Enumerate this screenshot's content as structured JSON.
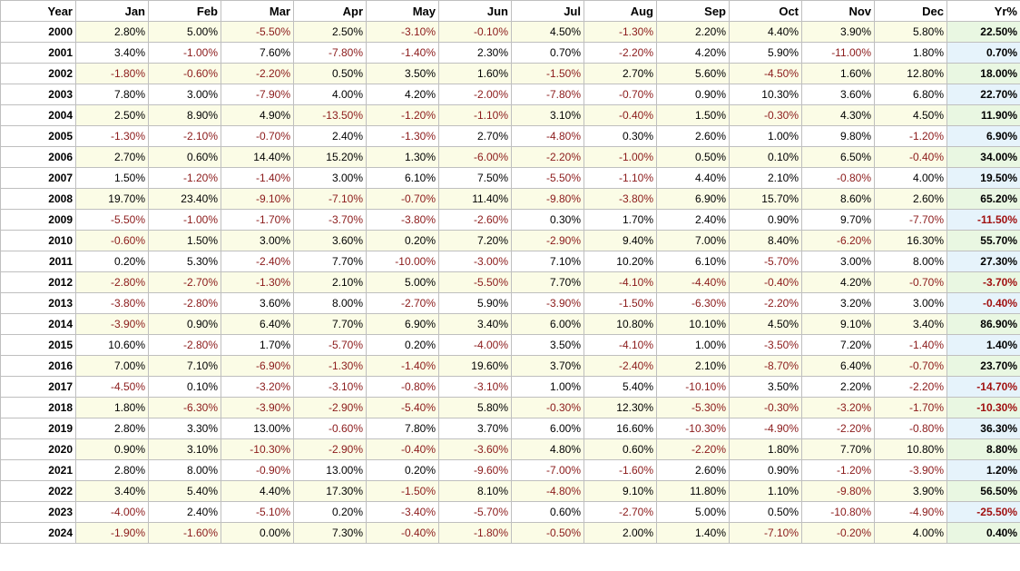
{
  "table": {
    "headers": [
      "Year",
      "Jan",
      "Feb",
      "Mar",
      "Apr",
      "May",
      "Jun",
      "Jul",
      "Aug",
      "Sep",
      "Oct",
      "Nov",
      "Dec",
      "Yr%"
    ],
    "rows": [
      {
        "year": "2000",
        "months": [
          "2.80%",
          "5.00%",
          "-5.50%",
          "2.50%",
          "-3.10%",
          "-0.10%",
          "4.50%",
          "-1.30%",
          "2.20%",
          "4.40%",
          "3.90%",
          "5.80%"
        ],
        "yr": "22.50%"
      },
      {
        "year": "2001",
        "months": [
          "3.40%",
          "-1.00%",
          "7.60%",
          "-7.80%",
          "-1.40%",
          "2.30%",
          "0.70%",
          "-2.20%",
          "4.20%",
          "5.90%",
          "-11.00%",
          "1.80%"
        ],
        "yr": "0.70%"
      },
      {
        "year": "2002",
        "months": [
          "-1.80%",
          "-0.60%",
          "-2.20%",
          "0.50%",
          "3.50%",
          "1.60%",
          "-1.50%",
          "2.70%",
          "5.60%",
          "-4.50%",
          "1.60%",
          "12.80%"
        ],
        "yr": "18.00%"
      },
      {
        "year": "2003",
        "months": [
          "7.80%",
          "3.00%",
          "-7.90%",
          "4.00%",
          "4.20%",
          "-2.00%",
          "-7.80%",
          "-0.70%",
          "0.90%",
          "10.30%",
          "3.60%",
          "6.80%"
        ],
        "yr": "22.70%"
      },
      {
        "year": "2004",
        "months": [
          "2.50%",
          "8.90%",
          "4.90%",
          "-13.50%",
          "-1.20%",
          "-1.10%",
          "3.10%",
          "-0.40%",
          "1.50%",
          "-0.30%",
          "4.30%",
          "4.50%"
        ],
        "yr": "11.90%"
      },
      {
        "year": "2005",
        "months": [
          "-1.30%",
          "-2.10%",
          "-0.70%",
          "2.40%",
          "-1.30%",
          "2.70%",
          "-4.80%",
          "0.30%",
          "2.60%",
          "1.00%",
          "9.80%",
          "-1.20%"
        ],
        "yr": "6.90%"
      },
      {
        "year": "2006",
        "months": [
          "2.70%",
          "0.60%",
          "14.40%",
          "15.20%",
          "1.30%",
          "-6.00%",
          "-2.20%",
          "-1.00%",
          "0.50%",
          "0.10%",
          "6.50%",
          "-0.40%"
        ],
        "yr": "34.00%"
      },
      {
        "year": "2007",
        "months": [
          "1.50%",
          "-1.20%",
          "-1.40%",
          "3.00%",
          "6.10%",
          "7.50%",
          "-5.50%",
          "-1.10%",
          "4.40%",
          "2.10%",
          "-0.80%",
          "4.00%"
        ],
        "yr": "19.50%"
      },
      {
        "year": "2008",
        "months": [
          "19.70%",
          "23.40%",
          "-9.10%",
          "-7.10%",
          "-0.70%",
          "11.40%",
          "-9.80%",
          "-3.80%",
          "6.90%",
          "15.70%",
          "8.60%",
          "2.60%"
        ],
        "yr": "65.20%"
      },
      {
        "year": "2009",
        "months": [
          "-5.50%",
          "-1.00%",
          "-1.70%",
          "-3.70%",
          "-3.80%",
          "-2.60%",
          "0.30%",
          "1.70%",
          "2.40%",
          "0.90%",
          "9.70%",
          "-7.70%"
        ],
        "yr": "-11.50%"
      },
      {
        "year": "2010",
        "months": [
          "-0.60%",
          "1.50%",
          "3.00%",
          "3.60%",
          "0.20%",
          "7.20%",
          "-2.90%",
          "9.40%",
          "7.00%",
          "8.40%",
          "-6.20%",
          "16.30%"
        ],
        "yr": "55.70%"
      },
      {
        "year": "2011",
        "months": [
          "0.20%",
          "5.30%",
          "-2.40%",
          "7.70%",
          "-10.00%",
          "-3.00%",
          "7.10%",
          "10.20%",
          "6.10%",
          "-5.70%",
          "3.00%",
          "8.00%"
        ],
        "yr": "27.30%"
      },
      {
        "year": "2012",
        "months": [
          "-2.80%",
          "-2.70%",
          "-1.30%",
          "2.10%",
          "5.00%",
          "-5.50%",
          "7.70%",
          "-4.10%",
          "-4.40%",
          "-0.40%",
          "4.20%",
          "-0.70%"
        ],
        "yr": "-3.70%"
      },
      {
        "year": "2013",
        "months": [
          "-3.80%",
          "-2.80%",
          "3.60%",
          "8.00%",
          "-2.70%",
          "5.90%",
          "-3.90%",
          "-1.50%",
          "-6.30%",
          "-2.20%",
          "3.20%",
          "3.00%"
        ],
        "yr": "-0.40%"
      },
      {
        "year": "2014",
        "months": [
          "-3.90%",
          "0.90%",
          "6.40%",
          "7.70%",
          "6.90%",
          "3.40%",
          "6.00%",
          "10.80%",
          "10.10%",
          "4.50%",
          "9.10%",
          "3.40%"
        ],
        "yr": "86.90%"
      },
      {
        "year": "2015",
        "months": [
          "10.60%",
          "-2.80%",
          "1.70%",
          "-5.70%",
          "0.20%",
          "-4.00%",
          "3.50%",
          "-4.10%",
          "1.00%",
          "-3.50%",
          "7.20%",
          "-1.40%"
        ],
        "yr": "1.40%"
      },
      {
        "year": "2016",
        "months": [
          "7.00%",
          "7.10%",
          "-6.90%",
          "-1.30%",
          "-1.40%",
          "19.60%",
          "3.70%",
          "-2.40%",
          "2.10%",
          "-8.70%",
          "6.40%",
          "-0.70%"
        ],
        "yr": "23.70%"
      },
      {
        "year": "2017",
        "months": [
          "-4.50%",
          "0.10%",
          "-3.20%",
          "-3.10%",
          "-0.80%",
          "-3.10%",
          "1.00%",
          "5.40%",
          "-10.10%",
          "3.50%",
          "2.20%",
          "-2.20%"
        ],
        "yr": "-14.70%"
      },
      {
        "year": "2018",
        "months": [
          "1.80%",
          "-6.30%",
          "-3.90%",
          "-2.90%",
          "-5.40%",
          "5.80%",
          "-0.30%",
          "12.30%",
          "-5.30%",
          "-0.30%",
          "-3.20%",
          "-1.70%"
        ],
        "yr": "-10.30%"
      },
      {
        "year": "2019",
        "months": [
          "2.80%",
          "3.30%",
          "13.00%",
          "-0.60%",
          "7.80%",
          "3.70%",
          "6.00%",
          "16.60%",
          "-10.30%",
          "-4.90%",
          "-2.20%",
          "-0.80%"
        ],
        "yr": "36.30%"
      },
      {
        "year": "2020",
        "months": [
          "0.90%",
          "3.10%",
          "-10.30%",
          "-2.90%",
          "-0.40%",
          "-3.60%",
          "4.80%",
          "0.60%",
          "-2.20%",
          "1.80%",
          "7.70%",
          "10.80%"
        ],
        "yr": "8.80%"
      },
      {
        "year": "2021",
        "months": [
          "2.80%",
          "8.00%",
          "-0.90%",
          "13.00%",
          "0.20%",
          "-9.60%",
          "-7.00%",
          "-1.60%",
          "2.60%",
          "0.90%",
          "-1.20%",
          "-3.90%"
        ],
        "yr": "1.20%"
      },
      {
        "year": "2022",
        "months": [
          "3.40%",
          "5.40%",
          "4.40%",
          "17.30%",
          "-1.50%",
          "8.10%",
          "-4.80%",
          "9.10%",
          "11.80%",
          "1.10%",
          "-9.80%",
          "3.90%"
        ],
        "yr": "56.50%"
      },
      {
        "year": "2023",
        "months": [
          "-4.00%",
          "2.40%",
          "-5.10%",
          "0.20%",
          "-3.40%",
          "-5.70%",
          "0.60%",
          "-2.70%",
          "5.00%",
          "0.50%",
          "-10.80%",
          "-4.90%"
        ],
        "yr": "-25.50%"
      },
      {
        "year": "2024",
        "months": [
          "-1.90%",
          "-1.60%",
          "0.00%",
          "7.30%",
          "-0.40%",
          "-1.80%",
          "-0.50%",
          "2.00%",
          "1.40%",
          "-7.10%",
          "-0.20%",
          "4.00%"
        ],
        "yr": "0.40%"
      }
    ]
  },
  "colors": {
    "positive_text": "#000000",
    "negative_text": "#8b1a1a",
    "row_band": "#fbfce6",
    "yr_band_odd": "#e9f7e2",
    "yr_band_even": "#e6f3fb",
    "grid_line": "#bfbfbf"
  }
}
